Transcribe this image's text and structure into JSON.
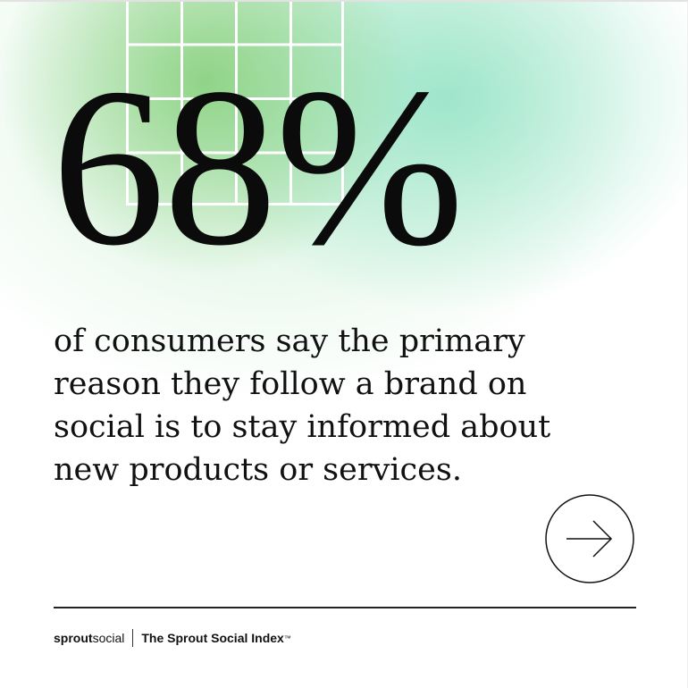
{
  "stat": {
    "value": "68%"
  },
  "body_text": "of consumers say the primary reason they follow a brand on social is to stay informed about new products or services.",
  "next_button": {
    "icon": "arrow-right-icon"
  },
  "footer": {
    "logo_bold": "sprout",
    "logo_light": "social",
    "title": "The Sprout Social Index",
    "trademark": "™"
  },
  "colors": {
    "green": "#8cd282",
    "mint": "#96e4c8",
    "text": "#0b0b0b"
  }
}
